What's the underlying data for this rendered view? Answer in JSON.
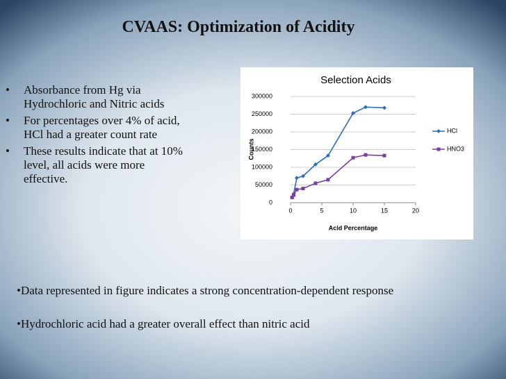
{
  "title": "CVAAS: Optimization of Acidity",
  "bullets": [
    "Absorbance from Hg via Hydrochloric and Nitric acids",
    "For percentages over 4% of acid, HCl had a greater count rate",
    "These results indicate that at 10% level, all acids were more effective."
  ],
  "notes": [
    "Data represented in figure indicates a strong concentration-dependent response",
    "Hydrochloric acid had a greater overall effect than nitric acid"
  ],
  "chart_data": {
    "type": "line",
    "title": "Selection Acids",
    "x_label": "Acid Percentage",
    "y_label": "Counts",
    "x": [
      0.25,
      0.5,
      1,
      2,
      4,
      6,
      10,
      12,
      15
    ],
    "series": [
      {
        "name": "HCl",
        "color": "#2f6fba",
        "values": [
          15000,
          25000,
          70000,
          75000,
          108000,
          133000,
          253000,
          270000,
          268000
        ]
      },
      {
        "name": "HNO3",
        "color": "#7a3f9d",
        "values": [
          15000,
          22000,
          37000,
          40000,
          55000,
          65000,
          127000,
          135000,
          133000
        ]
      }
    ],
    "xlim": [
      0,
      20
    ],
    "xticks": [
      0,
      5,
      10,
      15,
      20
    ],
    "ylim": [
      0,
      300000
    ],
    "yticks": [
      0,
      50000,
      100000,
      150000,
      200000,
      250000,
      300000
    ],
    "grid": true,
    "legend": "right"
  }
}
